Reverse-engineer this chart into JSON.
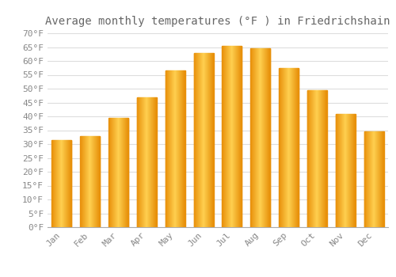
{
  "title": "Average monthly temperatures (°F ) in Friedrichshain",
  "months": [
    "Jan",
    "Feb",
    "Mar",
    "Apr",
    "May",
    "Jun",
    "Jul",
    "Aug",
    "Sep",
    "Oct",
    "Nov",
    "Dec"
  ],
  "values": [
    31.5,
    33.0,
    39.5,
    47.0,
    56.5,
    63.0,
    65.5,
    64.5,
    57.5,
    49.5,
    41.0,
    34.5
  ],
  "bar_color_left": "#E8900A",
  "bar_color_mid": "#FFD050",
  "bar_color_right": "#E8900A",
  "background_color": "#FFFFFF",
  "grid_color": "#DDDDDD",
  "ylim": [
    0,
    70
  ],
  "ytick_step": 5,
  "title_fontsize": 10,
  "tick_fontsize": 8,
  "font_family": "monospace",
  "tick_color": "#888888",
  "title_color": "#666666"
}
